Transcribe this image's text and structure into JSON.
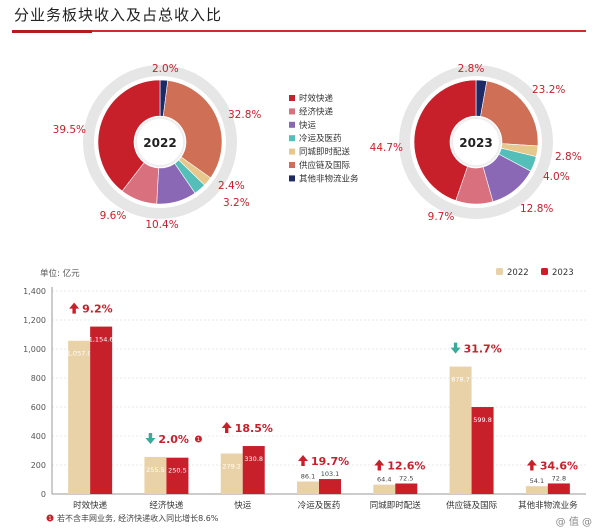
{
  "title": "分业务板块收入及占总收入比",
  "colors": {
    "time_express": "#c8202b",
    "economy_express": "#d9707e",
    "freight": "#8b68b5",
    "cold_chain": "#53bfb8",
    "intra_city": "#e8c78d",
    "supply_chain": "#cf6f56",
    "other": "#1e2a66",
    "bar_2022": "#ead2a8",
    "bar_2023": "#c8202b",
    "accent": "#c8202b",
    "down": "#3aaa9a"
  },
  "chart_data": [
    {
      "type": "pie",
      "style": "donut",
      "center_label": "2022",
      "categories": [
        "时效快递",
        "经济快递",
        "快运",
        "冷运及医药",
        "同城即时配送",
        "供应链及国际",
        "其他非物流业务"
      ],
      "values": [
        39.5,
        9.6,
        10.4,
        3.2,
        2.4,
        32.8,
        2.0
      ],
      "labels": [
        "39.5%",
        "9.6%",
        "10.4%",
        "3.2%",
        "2.4%",
        "32.8%",
        "2.0%"
      ]
    },
    {
      "type": "pie",
      "style": "donut",
      "center_label": "2023",
      "categories": [
        "时效快递",
        "经济快递",
        "快运",
        "冷运及医药",
        "同城即时配送",
        "供应链及国际",
        "其他非物流业务"
      ],
      "values": [
        44.7,
        9.7,
        12.8,
        4.0,
        2.8,
        23.2,
        2.8
      ],
      "labels": [
        "44.7%",
        "9.7%",
        "12.8%",
        "4.0%",
        "2.8%",
        "23.2%",
        "2.8%"
      ]
    },
    {
      "type": "bar",
      "unit_label": "单位: 亿元",
      "ylim": [
        0,
        1400
      ],
      "yticks": [
        "0",
        "200",
        "400",
        "600",
        "800",
        "1,000",
        "1,200",
        "1,400"
      ],
      "categories": [
        "时效快递",
        "经济快递",
        "快运",
        "冷运及医药",
        "同城即时配送",
        "供应链及国际",
        "其他非物流业务"
      ],
      "series": [
        {
          "name": "2022",
          "values": [
            1057.0,
            255.5,
            279.2,
            86.1,
            64.4,
            878.7,
            54.1
          ],
          "labels": [
            "1,057.0",
            "255.5",
            "279.2",
            "86.1",
            "64.4",
            "878.7",
            "54.1"
          ]
        },
        {
          "name": "2023",
          "values": [
            1154.6,
            250.5,
            330.8,
            103.1,
            72.5,
            599.8,
            72.8
          ],
          "labels": [
            "1,154.6",
            "250.5",
            "330.8",
            "103.1",
            "72.5",
            "599.8",
            "72.8"
          ]
        }
      ],
      "changes": [
        {
          "dir": "up",
          "text": "9.2%",
          "note": false
        },
        {
          "dir": "down",
          "text": "2.0%",
          "note": true
        },
        {
          "dir": "up",
          "text": "18.5%",
          "note": false
        },
        {
          "dir": "up",
          "text": "19.7%",
          "note": false
        },
        {
          "dir": "up",
          "text": "12.6%",
          "note": false
        },
        {
          "dir": "down",
          "text": "31.7%",
          "note": false
        },
        {
          "dir": "up",
          "text": "34.6%",
          "note": false
        }
      ],
      "footnote_marker": "1",
      "footnote": "若不含丰网业务, 经济快递收入同比增长8.6%"
    }
  ],
  "watermark": "@ 值 @"
}
